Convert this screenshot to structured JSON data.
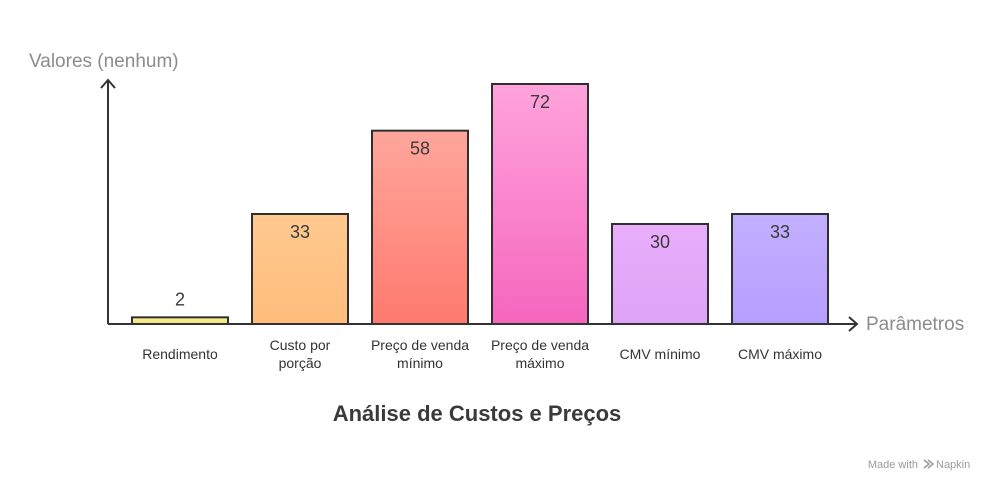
{
  "chart_data": {
    "type": "bar",
    "title": "Análise de Custos e Preços",
    "xlabel": "Parâmetros",
    "ylabel": "Valores (nenhum)",
    "ylim": [
      0,
      75
    ],
    "grid": false,
    "categories": [
      [
        "Rendimento"
      ],
      [
        "Custo por",
        "porção"
      ],
      [
        "Preço de venda",
        "mínimo"
      ],
      [
        "Preço de venda",
        "máximo"
      ],
      [
        "CMV mínimo"
      ],
      [
        "CMV máximo"
      ]
    ],
    "values": [
      2,
      33,
      58,
      72,
      30,
      33
    ],
    "bar_colors": [
      {
        "top": "#f7ee96",
        "bottom": "#f4e77a"
      },
      {
        "top": "#ffc98f",
        "bottom": "#ffbd7d"
      },
      {
        "top": "#ffa69c",
        "bottom": "#ff7a6e"
      },
      {
        "top": "#ffa3dc",
        "bottom": "#f566bd"
      },
      {
        "top": "#e8adfb",
        "bottom": "#dfa3f6"
      },
      {
        "top": "#c3b0ff",
        "bottom": "#b69eff"
      }
    ]
  },
  "footer": {
    "made_with": "Made with",
    "brand": "Napkin",
    "brand_icon": "napkin-logo-icon"
  },
  "colors": {
    "axis": "#333333",
    "bar_stroke": "#2f2f2f",
    "axis_label": "#8c8c8c"
  }
}
